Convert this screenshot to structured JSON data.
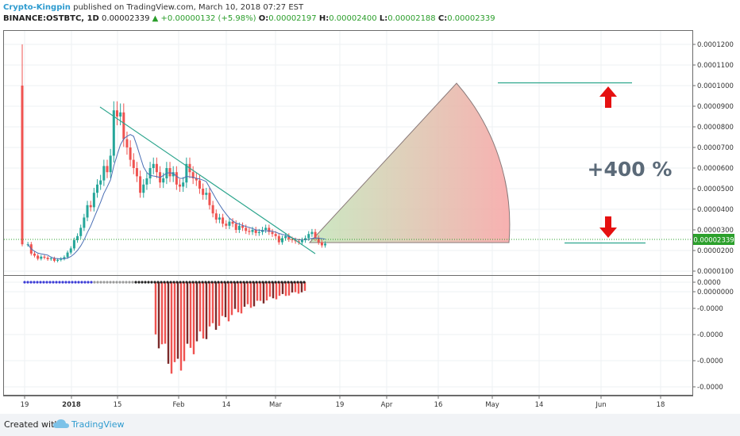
{
  "header": {
    "author": "Crypto-Kingpin",
    "published": "published on TradingView.com, March 10, 2018 07:27 EST",
    "symbol": "BINANCE:OSTBTC, 1D",
    "close_value": "0.00002339",
    "change": "▲ +0.00000132 (+5.98%)",
    "o_label": "O:",
    "o_value": "0.00002197",
    "h_label": "H:",
    "h_value": "0.00002400",
    "l_label": "L:",
    "l_value": "0.00002188",
    "c_label": "C:",
    "c_value": "0.00002339"
  },
  "footer": {
    "created_with": "Created with",
    "brand": "TradingView"
  },
  "annotation": {
    "target_text": "+400 %"
  },
  "price_tag": "0.00002339",
  "colors": {
    "up": "#26a69a",
    "down": "#ef5350",
    "trend": "#2ca58d",
    "sma": "#4a6fb5",
    "tag_bg": "#2ca02c",
    "arrow": "#e51010",
    "grid": "#eef0f3"
  },
  "chart_data": [
    {
      "type": "candlestick",
      "title": "BINANCE:OSTBTC, 1D",
      "x_ticks": [
        "19",
        "2018",
        "15",
        "Feb",
        "14",
        "Mar",
        "19",
        "Apr",
        "16",
        "May",
        "14",
        "Jun",
        "18"
      ],
      "y_ticks": [
        "0.0001200",
        "0.0001100",
        "0.0001000",
        "0.0000900",
        "0.0000800",
        "0.0000700",
        "0.0000600",
        "0.0000500",
        "0.0000400",
        "0.0000300",
        "0.0000200",
        "0.0000100",
        "0.0000000"
      ],
      "ylim": [
        5.5e-06,
        0.000125
      ],
      "sessions_approx": [
        {
          "period": "Dec 19 (listing)",
          "open": 0.0001,
          "high": 0.00012,
          "low": 2.3e-05,
          "close": 2.3e-05
        },
        {
          "period": "late Dec",
          "close_range": [
            1.5e-05,
            2.1e-05
          ]
        },
        {
          "period": "early Jan rally",
          "close_range": [
            2.5e-05,
            6.1e-05
          ]
        },
        {
          "period": "Jan 11 peak",
          "high": 0.0001,
          "close": 8.7e-05
        },
        {
          "period": "mid Jan - Mar",
          "trend": "declining",
          "close_range": [
            2.2e-05,
            6.6e-05
          ]
        },
        {
          "period": "Mar 10 (last)",
          "open": 2.197e-05,
          "high": 2.4e-05,
          "low": 2.188e-05,
          "close": 2.339e-05
        }
      ],
      "overlays": {
        "trendline": {
          "from": {
            "date": "Jan 11",
            "price": 8.9e-05
          },
          "to": {
            "date": "Mar 14",
            "price": 1.75e-05
          }
        },
        "projection_target": {
          "price": 0.0001,
          "date": "late Apr"
        },
        "projection_base": {
          "price": 2.339e-05
        },
        "target_line_price": 0.0001,
        "support_line_price": 2.18e-05
      },
      "grid": true
    },
    {
      "type": "bar",
      "title": "",
      "y_ticks": [
        "0.0000",
        "-0.0000",
        "-0.0000",
        "-0.0000",
        "-0.0000"
      ],
      "description": "oscillator histogram, zero until late January, then negative bars shrinking toward March"
    }
  ]
}
